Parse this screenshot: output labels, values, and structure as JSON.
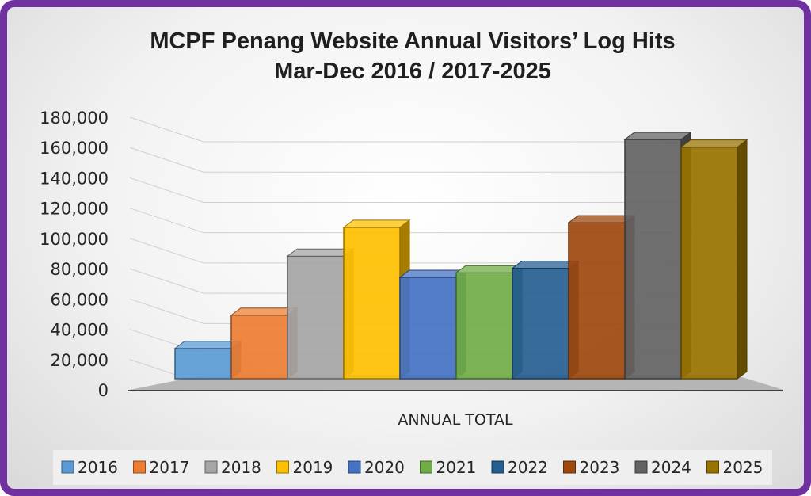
{
  "chart_data": {
    "type": "bar",
    "title": "MCPF Penang Website Annual Visitors’ Log Hits",
    "subtitle": "Mar-Dec 2016 / 2017-2025",
    "categories": [
      "ANNUAL TOTAL"
    ],
    "xlabel": "",
    "ylabel": "",
    "ylim": [
      0,
      180000
    ],
    "yticks": [
      "0",
      "20,000",
      "40,000",
      "60,000",
      "80,000",
      "100,000",
      "120,000",
      "140,000",
      "160,000",
      "180,000"
    ],
    "grid": true,
    "legend_position": "bottom",
    "three_d": true,
    "series": [
      {
        "name": "2016",
        "values": [
          20000
        ],
        "color": "#5b9bd5"
      },
      {
        "name": "2017",
        "values": [
          42000
        ],
        "color": "#ed7d31"
      },
      {
        "name": "2018",
        "values": [
          81000
        ],
        "color": "#a5a5a5"
      },
      {
        "name": "2019",
        "values": [
          100000
        ],
        "color": "#ffc000"
      },
      {
        "name": "2020",
        "values": [
          67000
        ],
        "color": "#4472c4"
      },
      {
        "name": "2021",
        "values": [
          70000
        ],
        "color": "#70ad47"
      },
      {
        "name": "2022",
        "values": [
          73000
        ],
        "color": "#255e91"
      },
      {
        "name": "2023",
        "values": [
          103000
        ],
        "color": "#9e480e"
      },
      {
        "name": "2024",
        "values": [
          158000
        ],
        "color": "#636363"
      },
      {
        "name": "2025",
        "values": [
          153000
        ],
        "color": "#997300"
      }
    ]
  },
  "frame": {
    "border_color": "#7030a0"
  }
}
